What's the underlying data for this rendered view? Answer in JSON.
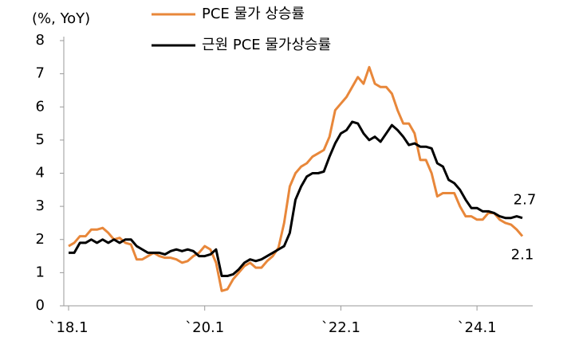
{
  "chart_data": {
    "type": "line",
    "y_axis_label": "(%, YoY)",
    "categories": [
      "`18.1",
      null,
      null,
      null,
      null,
      null,
      null,
      null,
      null,
      null,
      null,
      null,
      null,
      null,
      null,
      null,
      null,
      null,
      null,
      null,
      null,
      null,
      null,
      null,
      "`20.1",
      null,
      null,
      null,
      null,
      null,
      null,
      null,
      null,
      null,
      null,
      null,
      null,
      null,
      null,
      null,
      null,
      null,
      null,
      null,
      null,
      null,
      null,
      null,
      "`22.1",
      null,
      null,
      null,
      null,
      null,
      null,
      null,
      null,
      null,
      null,
      null,
      null,
      null,
      null,
      null,
      null,
      null,
      null,
      null,
      null,
      null,
      null,
      null,
      "`24.1",
      null,
      null,
      null,
      null,
      null,
      null,
      null,
      null
    ],
    "series": [
      {
        "name": "PCE 물가 상승률",
        "color": "#e8873a",
        "values": [
          1.8,
          1.9,
          2.1,
          2.1,
          2.3,
          2.3,
          2.35,
          2.2,
          2.0,
          2.05,
          1.9,
          1.85,
          1.4,
          1.4,
          1.5,
          1.6,
          1.5,
          1.45,
          1.45,
          1.4,
          1.3,
          1.35,
          1.5,
          1.6,
          1.8,
          1.7,
          1.3,
          0.45,
          0.5,
          0.8,
          1.0,
          1.2,
          1.3,
          1.15,
          1.15,
          1.35,
          1.5,
          1.75,
          2.5,
          3.6,
          4.0,
          4.2,
          4.3,
          4.5,
          4.6,
          4.7,
          5.1,
          5.9,
          6.1,
          6.3,
          6.6,
          6.9,
          6.7,
          7.2,
          6.7,
          6.6,
          6.6,
          6.4,
          5.9,
          5.5,
          5.5,
          5.2,
          4.4,
          4.4,
          4.0,
          3.3,
          3.4,
          3.4,
          3.4,
          3.0,
          2.7,
          2.7,
          2.6,
          2.6,
          2.8,
          2.8,
          2.6,
          2.5,
          2.45,
          2.3,
          2.1
        ]
      },
      {
        "name": "근원 PCE 물가상승률",
        "color": "#000000",
        "values": [
          1.6,
          1.6,
          1.9,
          1.9,
          2.0,
          1.9,
          2.0,
          1.9,
          2.0,
          1.9,
          2.0,
          2.0,
          1.8,
          1.7,
          1.6,
          1.6,
          1.6,
          1.55,
          1.65,
          1.7,
          1.65,
          1.7,
          1.65,
          1.5,
          1.5,
          1.55,
          1.7,
          0.9,
          0.9,
          0.95,
          1.1,
          1.3,
          1.4,
          1.35,
          1.4,
          1.5,
          1.6,
          1.7,
          1.8,
          2.2,
          3.2,
          3.6,
          3.9,
          4.0,
          4.0,
          4.05,
          4.5,
          4.9,
          5.2,
          5.3,
          5.55,
          5.5,
          5.2,
          5.0,
          5.1,
          4.95,
          5.2,
          5.45,
          5.3,
          5.1,
          4.85,
          4.9,
          4.8,
          4.8,
          4.75,
          4.3,
          4.2,
          3.8,
          3.7,
          3.5,
          3.2,
          2.95,
          2.95,
          2.85,
          2.85,
          2.8,
          2.7,
          2.65,
          2.65,
          2.7,
          2.65
        ]
      }
    ],
    "annotations": [
      "2.7",
      "2.1"
    ],
    "ylim": [
      0,
      8
    ],
    "yticks": [
      0,
      1,
      2,
      3,
      4,
      5,
      6,
      7,
      8
    ],
    "grid": false
  }
}
